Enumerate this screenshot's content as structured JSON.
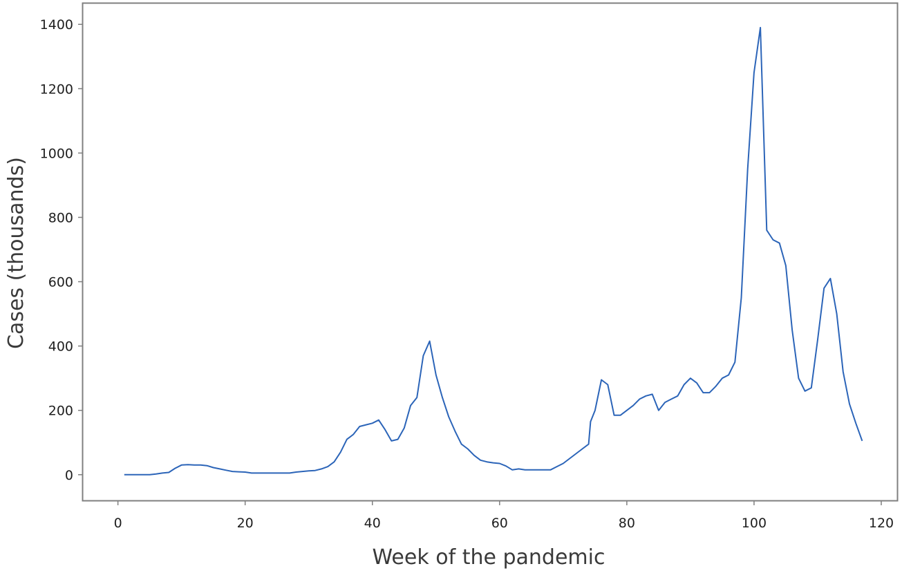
{
  "chart_data": {
    "type": "line",
    "xlabel": "Week of the pandemic",
    "ylabel": "Cases (thousands)",
    "xlim": [
      -5.5,
      122.5
    ],
    "ylim": [
      -80,
      1465
    ],
    "xticks": [
      0,
      20,
      40,
      60,
      80,
      100,
      120
    ],
    "yticks": [
      0,
      200,
      400,
      600,
      800,
      1000,
      1200,
      1400
    ],
    "grid": false,
    "legend": "none",
    "colors": {
      "line": "#2b64b8",
      "frame": "#7f7f7f"
    },
    "series": [
      {
        "x": [
          1,
          2,
          3,
          4,
          5,
          6,
          7,
          8,
          9,
          10,
          11,
          12,
          13,
          14,
          15,
          16,
          17,
          18,
          19,
          20,
          21,
          22,
          23,
          24,
          25,
          26,
          27,
          28,
          29,
          30,
          31,
          32,
          33,
          34,
          35,
          36,
          37,
          38,
          39,
          40,
          41,
          42,
          43,
          44,
          45,
          46,
          47,
          48,
          49,
          50,
          51,
          52,
          53,
          54,
          55,
          56,
          57,
          58,
          59,
          60,
          61,
          62,
          63,
          64,
          65,
          66,
          67,
          68,
          69,
          70,
          71,
          72,
          73,
          74,
          74.3,
          75,
          76,
          77,
          78,
          79,
          80,
          81,
          82,
          83,
          84,
          85,
          86,
          87,
          88,
          89,
          90,
          91,
          92,
          93,
          94,
          95,
          96,
          97,
          98,
          99,
          100,
          101,
          102,
          103,
          104,
          105,
          106,
          107,
          108,
          109,
          110,
          111,
          112,
          113,
          114,
          115,
          116,
          117
        ],
        "y": [
          0,
          0,
          0,
          0,
          0,
          2,
          5,
          7,
          20,
          30,
          31,
          30,
          30,
          28,
          22,
          18,
          14,
          10,
          9,
          8,
          5,
          5,
          5,
          5,
          5,
          5,
          5,
          8,
          10,
          12,
          13,
          18,
          25,
          40,
          70,
          110,
          125,
          150,
          155,
          160,
          170,
          140,
          105,
          110,
          145,
          215,
          240,
          370,
          415,
          310,
          240,
          180,
          135,
          95,
          80,
          60,
          45,
          40,
          37,
          35,
          27,
          15,
          18,
          15,
          15,
          15,
          15,
          15,
          25,
          35,
          50,
          65,
          80,
          95,
          165,
          200,
          295,
          280,
          185,
          185,
          200,
          215,
          235,
          245,
          250,
          200,
          225,
          235,
          245,
          280,
          300,
          285,
          255,
          255,
          275,
          300,
          310,
          350,
          550,
          950,
          1250,
          1390,
          760,
          730,
          720,
          650,
          450,
          300,
          260,
          270,
          420,
          580,
          610,
          500,
          320,
          220,
          160,
          105
        ]
      }
    ]
  }
}
